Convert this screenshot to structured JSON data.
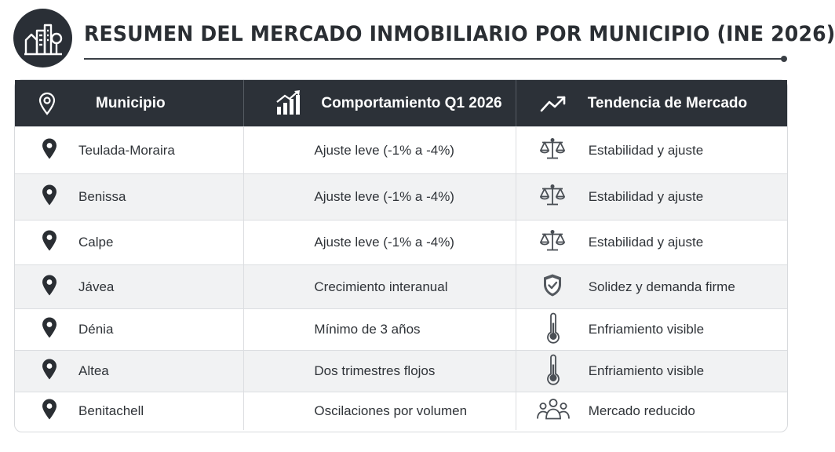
{
  "header": {
    "title": "RESUMEN DEL MERCADO INMOBILIARIO POR MUNICIPIO (INE 2026)",
    "logo_icon": "city-buildings-icon"
  },
  "table": {
    "columns": [
      {
        "label": "Municipio",
        "icon": "location-pin-icon"
      },
      {
        "label": "Comportamiento Q1 2026",
        "icon": "bar-chart-growth-icon"
      },
      {
        "label": "Tendencia de Mercado",
        "icon": "trend-arrow-icon"
      }
    ],
    "rows": [
      {
        "municipio": "Teulada-Moraira",
        "comportamiento": "Ajuste leve (-1% a -4%)",
        "tendencia": "Estabilidad y ajuste",
        "tendencia_icon": "balance-scale-icon"
      },
      {
        "municipio": "Benissa",
        "comportamiento": "Ajuste leve (-1% a -4%)",
        "tendencia": "Estabilidad y ajuste",
        "tendencia_icon": "balance-scale-icon"
      },
      {
        "municipio": "Calpe",
        "comportamiento": "Ajuste leve (-1% a -4%)",
        "tendencia": "Estabilidad y ajuste",
        "tendencia_icon": "balance-scale-icon"
      },
      {
        "municipio": "Jávea",
        "comportamiento": "Crecimiento interanual",
        "tendencia": "Solidez y demanda firme",
        "tendencia_icon": "shield-check-icon"
      },
      {
        "municipio": "Dénia",
        "comportamiento": "Mínimo de 3 años",
        "tendencia": "Enfriamiento visible",
        "tendencia_icon": "thermometer-icon"
      },
      {
        "municipio": "Altea",
        "comportamiento": "Dos trimestres flojos",
        "tendencia": "Enfriamiento visible",
        "tendencia_icon": "thermometer-icon"
      },
      {
        "municipio": "Benitachell",
        "comportamiento": "Oscilaciones por volumen",
        "tendencia": "Mercado reducido",
        "tendencia_icon": "people-group-icon"
      }
    ]
  },
  "colors": {
    "header_bg": "#2c3138",
    "alt_row_bg": "#f1f2f3",
    "text": "#2f3338"
  }
}
